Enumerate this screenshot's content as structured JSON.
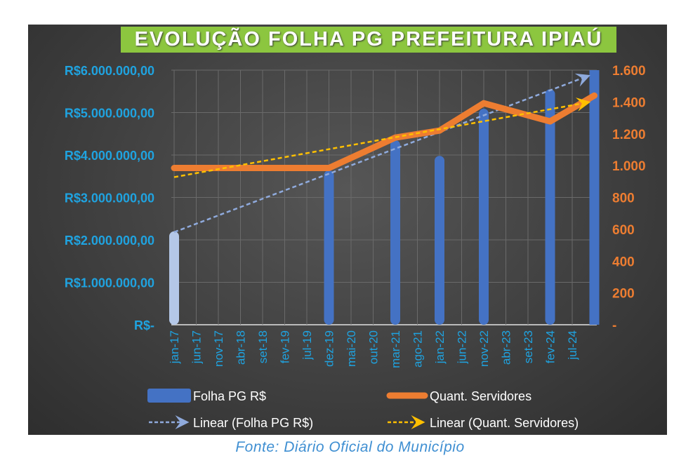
{
  "caption": "Fonte: Diário Oficial do Município",
  "chart_data": {
    "type": "bar+line",
    "title": "EVOLUÇÃO FOLHA PG PREFEITURA IPIAÚ",
    "x_tick_labels": [
      "jan-17",
      "jun-17",
      "nov-17",
      "abr-18",
      "set-18",
      "fev-19",
      "jul-19",
      "dez-19",
      "mai-20",
      "out-20",
      "mar-21",
      "ago-21",
      "jan-22",
      "jun-22",
      "nov-22",
      "abr-23",
      "set-23",
      "fev-24",
      "jul-24"
    ],
    "x_months_since_jan17_range": [
      0,
      96
    ],
    "left_axis": {
      "ylim": [
        0,
        6000000
      ],
      "tick_labels": [
        "R$-",
        "R$1.000.000,00",
        "R$2.000.000,00",
        "R$3.000.000,00",
        "R$4.000.000,00",
        "R$5.000.000,00",
        "R$6.000.000,00"
      ],
      "color": "#1fa3e0"
    },
    "right_axis": {
      "ylim": [
        0,
        1600
      ],
      "tick_labels": [
        "-",
        "200",
        "400",
        "600",
        "800",
        "1.000",
        "1.200",
        "1.400",
        "1.600"
      ],
      "color": "#ed7d31"
    },
    "points_month_index": [
      0,
      35,
      50,
      60,
      70,
      85,
      95
    ],
    "series": [
      {
        "name": "Folha PG R$",
        "type": "bar",
        "axis": "left",
        "color": "#4472c4",
        "values": [
          2200000,
          3640000,
          4350000,
          3980000,
          5090000,
          5550000,
          6000000
        ]
      },
      {
        "name": "Quant. Servidores",
        "type": "line",
        "axis": "right",
        "color": "#ed7d31",
        "values": [
          985,
          985,
          1176,
          1220,
          1392,
          1278,
          1440
        ]
      }
    ],
    "trendlines": [
      {
        "name": "Linear (Folha PG R$)",
        "of": 0,
        "color": "#8faadc"
      },
      {
        "name": "Linear (Quant. Servidores)",
        "of": 1,
        "color": "#ffc000"
      }
    ],
    "grid": true,
    "legend": "bottom"
  }
}
